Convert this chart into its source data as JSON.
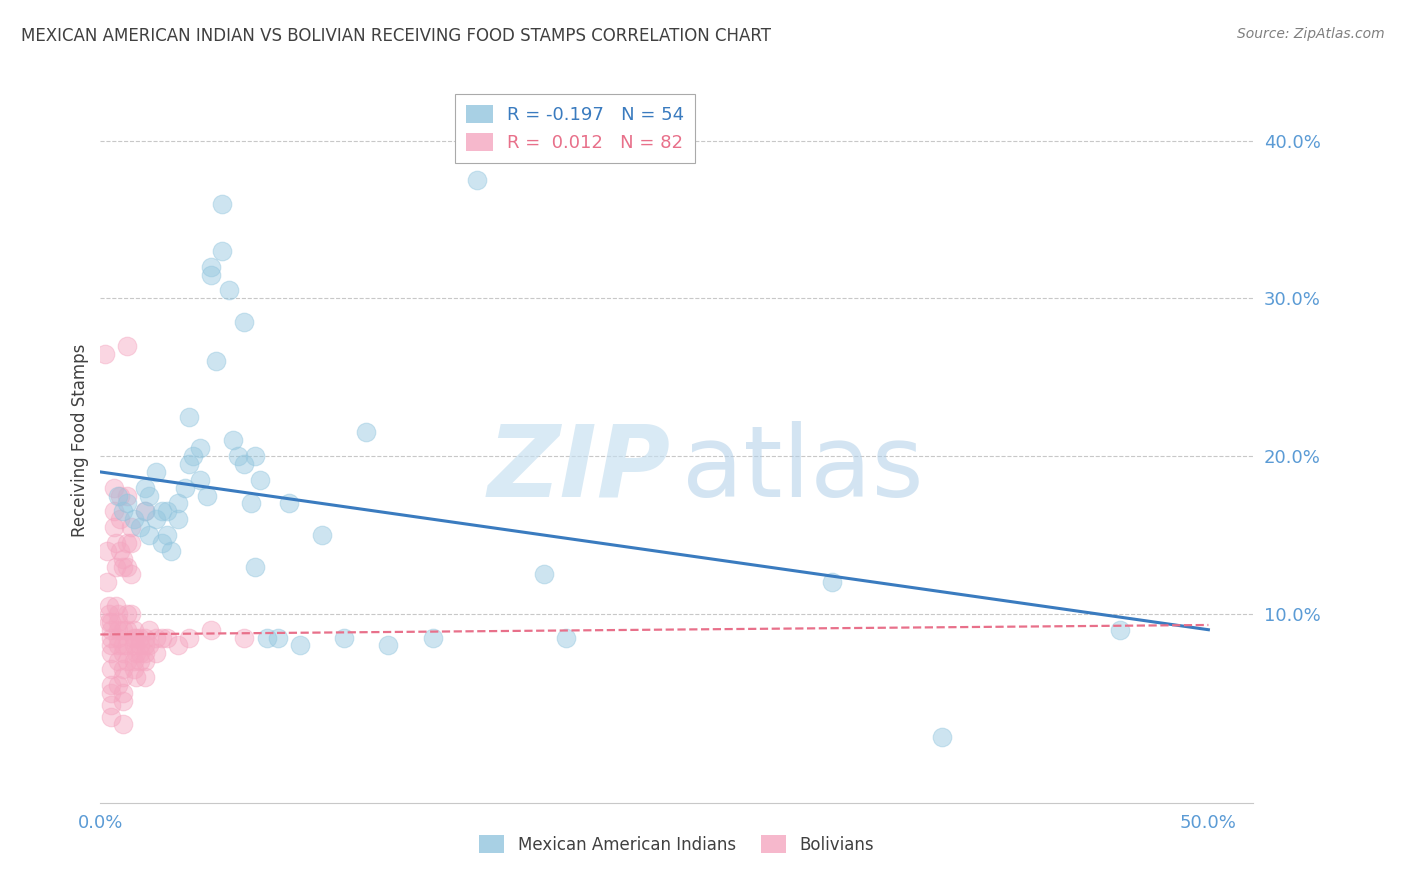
{
  "title": "MEXICAN AMERICAN INDIAN VS BOLIVIAN RECEIVING FOOD STAMPS CORRELATION CHART",
  "source": "Source: ZipAtlas.com",
  "ylabel": "Receiving Food Stamps",
  "watermark_zip": "ZIP",
  "watermark_atlas": "atlas",
  "xlim": [
    0.0,
    0.52
  ],
  "ylim": [
    -0.02,
    0.44
  ],
  "blue_color": "#92c5de",
  "pink_color": "#f4a6c0",
  "blue_line_color": "#3a7bbf",
  "pink_line_color": "#e8708a",
  "legend_blue_R": "-0.197",
  "legend_blue_N": "54",
  "legend_pink_R": "0.012",
  "legend_pink_N": "82",
  "blue_scatter_x": [
    0.008,
    0.01,
    0.012,
    0.015,
    0.018,
    0.02,
    0.02,
    0.022,
    0.022,
    0.025,
    0.025,
    0.028,
    0.028,
    0.03,
    0.03,
    0.032,
    0.035,
    0.035,
    0.038,
    0.04,
    0.04,
    0.042,
    0.045,
    0.045,
    0.048,
    0.05,
    0.05,
    0.052,
    0.055,
    0.055,
    0.058,
    0.06,
    0.062,
    0.065,
    0.065,
    0.068,
    0.07,
    0.072,
    0.075,
    0.08,
    0.085,
    0.09,
    0.1,
    0.11,
    0.12,
    0.13,
    0.15,
    0.17,
    0.2,
    0.21,
    0.33,
    0.38,
    0.46,
    0.07
  ],
  "blue_scatter_y": [
    0.175,
    0.165,
    0.17,
    0.16,
    0.155,
    0.18,
    0.165,
    0.175,
    0.15,
    0.19,
    0.16,
    0.165,
    0.145,
    0.165,
    0.15,
    0.14,
    0.17,
    0.16,
    0.18,
    0.225,
    0.195,
    0.2,
    0.205,
    0.185,
    0.175,
    0.32,
    0.315,
    0.26,
    0.36,
    0.33,
    0.305,
    0.21,
    0.2,
    0.195,
    0.285,
    0.17,
    0.2,
    0.185,
    0.085,
    0.085,
    0.17,
    0.08,
    0.15,
    0.085,
    0.215,
    0.08,
    0.085,
    0.375,
    0.125,
    0.085,
    0.12,
    0.022,
    0.09,
    0.13
  ],
  "pink_scatter_x": [
    0.002,
    0.003,
    0.003,
    0.004,
    0.004,
    0.004,
    0.005,
    0.005,
    0.005,
    0.005,
    0.005,
    0.005,
    0.005,
    0.005,
    0.005,
    0.005,
    0.006,
    0.006,
    0.006,
    0.007,
    0.007,
    0.007,
    0.008,
    0.008,
    0.008,
    0.008,
    0.008,
    0.008,
    0.008,
    0.009,
    0.009,
    0.009,
    0.01,
    0.01,
    0.01,
    0.01,
    0.01,
    0.01,
    0.01,
    0.01,
    0.01,
    0.01,
    0.012,
    0.012,
    0.012,
    0.012,
    0.012,
    0.012,
    0.012,
    0.012,
    0.014,
    0.014,
    0.014,
    0.014,
    0.015,
    0.015,
    0.015,
    0.015,
    0.015,
    0.016,
    0.016,
    0.016,
    0.018,
    0.018,
    0.018,
    0.018,
    0.02,
    0.02,
    0.02,
    0.02,
    0.02,
    0.02,
    0.022,
    0.022,
    0.025,
    0.025,
    0.028,
    0.03,
    0.035,
    0.04,
    0.05,
    0.065
  ],
  "pink_scatter_y": [
    0.265,
    0.14,
    0.12,
    0.105,
    0.1,
    0.095,
    0.095,
    0.09,
    0.085,
    0.08,
    0.075,
    0.065,
    0.055,
    0.05,
    0.042,
    0.035,
    0.18,
    0.165,
    0.155,
    0.145,
    0.13,
    0.105,
    0.1,
    0.095,
    0.09,
    0.085,
    0.08,
    0.07,
    0.055,
    0.175,
    0.16,
    0.14,
    0.135,
    0.13,
    0.09,
    0.08,
    0.075,
    0.065,
    0.06,
    0.05,
    0.045,
    0.03,
    0.27,
    0.175,
    0.145,
    0.13,
    0.1,
    0.09,
    0.08,
    0.07,
    0.155,
    0.145,
    0.125,
    0.1,
    0.09,
    0.085,
    0.08,
    0.07,
    0.065,
    0.085,
    0.075,
    0.06,
    0.085,
    0.08,
    0.075,
    0.07,
    0.165,
    0.085,
    0.08,
    0.075,
    0.07,
    0.06,
    0.09,
    0.08,
    0.085,
    0.075,
    0.085,
    0.085,
    0.08,
    0.085,
    0.09,
    0.085
  ],
  "blue_line_x0": 0.0,
  "blue_line_x1": 0.5,
  "blue_line_y0": 0.19,
  "blue_line_y1": 0.09,
  "pink_line_x0": 0.0,
  "pink_line_x1": 0.5,
  "pink_line_y0": 0.087,
  "pink_line_y1": 0.093,
  "grid_color": "#c8c8c8",
  "grid_values": [
    0.1,
    0.2,
    0.3,
    0.4
  ],
  "axis_label_color": "#5b9bd5",
  "title_color": "#404040",
  "source_color": "#808080",
  "marker_size": 180,
  "marker_alpha": 0.45,
  "marker_lw": 0.8
}
